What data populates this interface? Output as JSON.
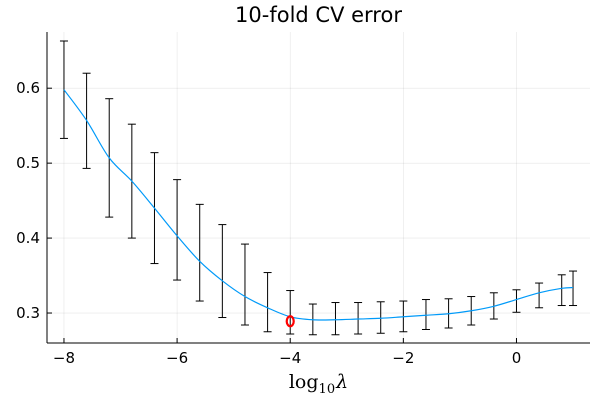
{
  "chart_data": {
    "type": "line",
    "title": "10-fold CV error",
    "xlabel": {
      "base": "log",
      "subscript": "10",
      "symbol": "λ"
    },
    "ylabel": "",
    "xlim": [
      -8.3,
      1.3
    ],
    "ylim": [
      0.26,
      0.675
    ],
    "xticks": [
      -8,
      -6,
      -4,
      -2,
      0
    ],
    "xtick_labels": [
      "−8",
      "−6",
      "−4",
      "−2",
      "0"
    ],
    "yticks": [
      0.3,
      0.4,
      0.5,
      0.6
    ],
    "ytick_labels": [
      "0.3",
      "0.4",
      "0.5",
      "0.6"
    ],
    "grid": true,
    "legend": "none",
    "series": [
      {
        "style": "line",
        "color": "#009af9",
        "x": [
          -8.0,
          -7.6,
          -7.2,
          -6.8,
          -6.4,
          -6.0,
          -5.6,
          -5.2,
          -4.8,
          -4.4,
          -4.0,
          -3.6,
          -3.2,
          -2.8,
          -2.4,
          -2.0,
          -1.6,
          -1.2,
          -0.8,
          -0.4,
          0.0,
          0.4,
          0.8,
          1.0
        ],
        "y": [
          0.598,
          0.557,
          0.507,
          0.476,
          0.44,
          0.403,
          0.369,
          0.343,
          0.322,
          0.307,
          0.295,
          0.291,
          0.291,
          0.292,
          0.293,
          0.295,
          0.297,
          0.299,
          0.303,
          0.309,
          0.318,
          0.327,
          0.333,
          0.334
        ],
        "error_lower": [
          0.533,
          0.493,
          0.428,
          0.4,
          0.366,
          0.344,
          0.316,
          0.294,
          0.284,
          0.275,
          0.272,
          0.271,
          0.271,
          0.272,
          0.273,
          0.275,
          0.278,
          0.28,
          0.284,
          0.292,
          0.301,
          0.307,
          0.31,
          0.31
        ],
        "error_upper": [
          0.663,
          0.62,
          0.586,
          0.552,
          0.514,
          0.478,
          0.445,
          0.418,
          0.392,
          0.354,
          0.33,
          0.312,
          0.314,
          0.314,
          0.315,
          0.316,
          0.318,
          0.319,
          0.322,
          0.327,
          0.331,
          0.34,
          0.351,
          0.356
        ]
      },
      {
        "style": "marker",
        "marker": "circle-open",
        "color": "#ff0000",
        "x": [
          -4.0
        ],
        "y": [
          0.289
        ]
      }
    ]
  }
}
